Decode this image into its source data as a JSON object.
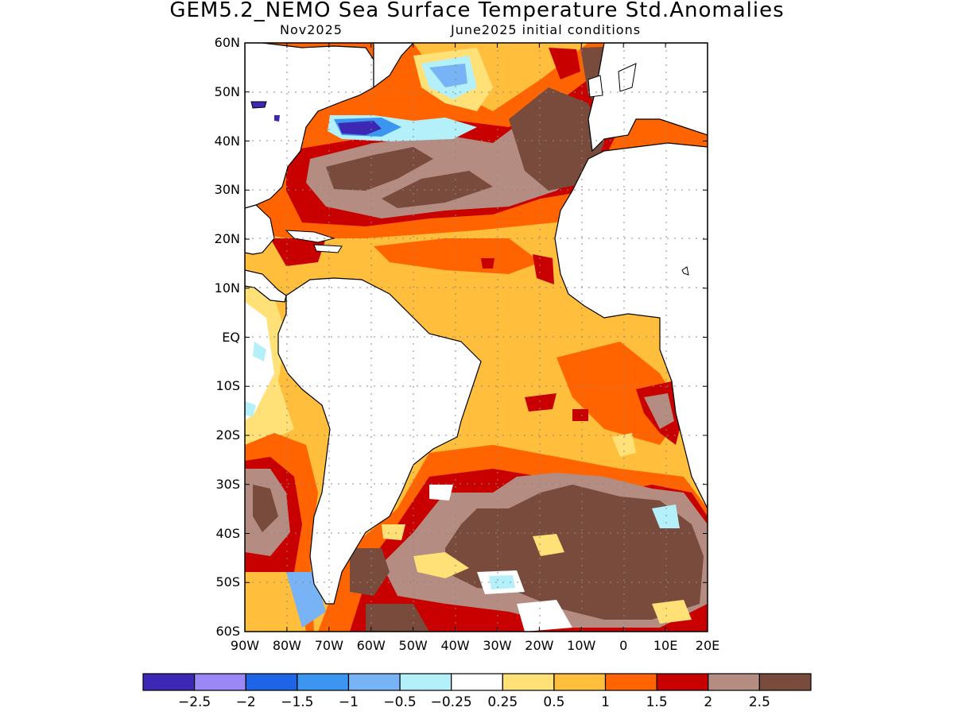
{
  "header": {
    "title": "GEM5.2_NEMO Sea Surface Temperature Std.Anomalies",
    "valid_month": "Nov2025",
    "init": "June2025 initial conditions"
  },
  "axes": {
    "lat_labels": [
      "60N",
      "50N",
      "40N",
      "30N",
      "20N",
      "10N",
      "EQ",
      "10S",
      "20S",
      "30S",
      "40S",
      "50S",
      "60S"
    ],
    "lon_labels": [
      "90W",
      "80W",
      "70W",
      "60W",
      "50W",
      "40W",
      "30W",
      "20W",
      "10W",
      "0",
      "10E",
      "20E"
    ],
    "lat_range": [
      -60,
      60
    ],
    "lon_range": [
      -90,
      20
    ],
    "grid": "dotted"
  },
  "colorbar": {
    "colors": [
      "#3c28b4",
      "#9b87f5",
      "#1e64e6",
      "#3c96f0",
      "#78b4f5",
      "#b4f0fa",
      "#ffffff",
      "#ffe178",
      "#ffbe3c",
      "#ff6400",
      "#c80000",
      "#b48c82",
      "#784b3c"
    ],
    "labels": [
      "-2.5",
      "-2",
      "-1.5",
      "-1",
      "-0.5",
      "-0.25",
      "0.25",
      "0.5",
      "1",
      "1.5",
      "2",
      "2.5"
    ]
  },
  "colors": {
    "land": "#ffffff",
    "coast": "#000000",
    "ocean_base": "#ffbe3c"
  }
}
